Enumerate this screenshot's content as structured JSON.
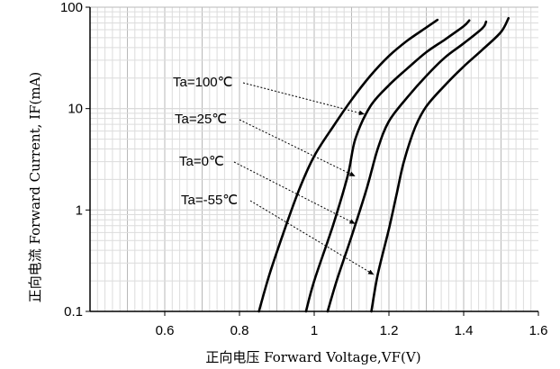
{
  "chart_data": {
    "type": "line",
    "xlabel": "正向电压 Forward Voltage,VF(V)",
    "ylabel": "正向电流 Forward Current, IF(mA)",
    "xlim": [
      0.4,
      1.6
    ],
    "ylim": [
      0.1,
      100
    ],
    "yscale": "log",
    "grid": true,
    "x_ticks": [
      0.6,
      0.8,
      1.0,
      1.2,
      1.4,
      1.6
    ],
    "x_tick_labels": [
      "0.6",
      "0.8",
      "1",
      "1.2",
      "1.4",
      "1.6"
    ],
    "y_ticks": [
      0.1,
      1,
      10,
      100
    ],
    "y_tick_labels": [
      "0.1",
      "1",
      "10",
      "100"
    ],
    "series": [
      {
        "name": "Ta=100℃",
        "x": [
          0.852,
          0.88,
          0.92,
          0.96,
          1.0,
          1.05,
          1.1,
          1.15,
          1.2,
          1.25,
          1.3,
          1.33
        ],
        "y": [
          0.1,
          0.23,
          0.63,
          1.6,
          3.4,
          6.6,
          12.2,
          21,
          33,
          47,
          63,
          75
        ]
      },
      {
        "name": "Ta=25℃",
        "x": [
          0.978,
          1.0,
          1.05,
          1.09,
          1.11,
          1.15,
          1.2,
          1.25,
          1.3,
          1.35,
          1.4,
          1.415
        ],
        "y": [
          0.1,
          0.2,
          0.7,
          2.2,
          5.0,
          10.5,
          17,
          25,
          36,
          48,
          65,
          74
        ]
      },
      {
        "name": "Ta=0℃",
        "x": [
          1.036,
          1.06,
          1.1,
          1.14,
          1.17,
          1.2,
          1.25,
          1.3,
          1.35,
          1.4,
          1.45,
          1.46
        ],
        "y": [
          0.1,
          0.2,
          0.55,
          1.6,
          4.0,
          7.5,
          13,
          21,
          32,
          44,
          62,
          72
        ]
      },
      {
        "name": "Ta=-55℃",
        "x": [
          1.153,
          1.17,
          1.2,
          1.22,
          1.24,
          1.27,
          1.3,
          1.35,
          1.4,
          1.45,
          1.5,
          1.52
        ],
        "y": [
          0.1,
          0.23,
          0.65,
          1.4,
          3.0,
          6.5,
          10.5,
          17,
          26,
          38,
          57,
          78
        ]
      }
    ],
    "annotations": [
      {
        "text": "Ta=100℃",
        "series": 0,
        "arrow_to": [
          1.135,
          8.8
        ]
      },
      {
        "text": "Ta=25℃",
        "series": 1,
        "arrow_to": [
          1.11,
          2.15
        ]
      },
      {
        "text": "Ta=0℃",
        "series": 2,
        "arrow_to": [
          1.11,
          0.73
        ]
      },
      {
        "text": "Ta=-55℃",
        "series": 3,
        "arrow_to": [
          1.16,
          0.23
        ]
      }
    ]
  }
}
